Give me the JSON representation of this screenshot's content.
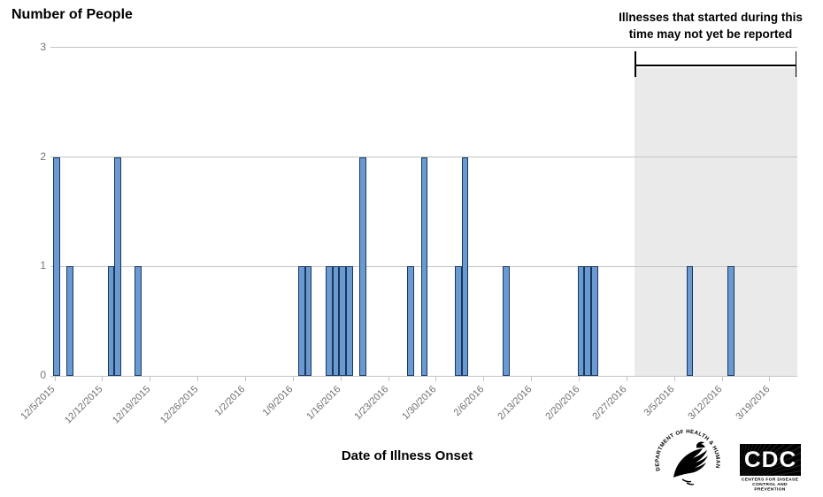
{
  "chart": {
    "title": "Number of People",
    "x_axis_title": "Date of Illness Onset",
    "annotation_line1": "Illnesses that started during this",
    "annotation_line2": "time may not yet be reported",
    "x_tick_labels": [
      "12/5/2015",
      "12/12/2015",
      "12/19/2015",
      "12/26/2015",
      "1/2/2016",
      "1/9/2016",
      "1/16/2016",
      "1/23/2016",
      "1/30/2016",
      "2/6/2016",
      "2/13/2016",
      "2/20/2016",
      "2/27/2016",
      "3/5/2016",
      "3/12/2016",
      "3/19/2016"
    ],
    "y_tick_labels": [
      "0",
      "1",
      "2",
      "3"
    ]
  },
  "chart_data": {
    "type": "bar",
    "title": "Number of People",
    "xlabel": "Date of Illness Onset",
    "ylabel": "Number of People",
    "ylim": [
      0,
      3
    ],
    "grid": true,
    "x": [
      "12/5/2015",
      "12/7/2015",
      "12/13/2015",
      "12/14/2015",
      "12/17/2015",
      "1/10/2016",
      "1/11/2016",
      "1/14/2016",
      "1/15/2016",
      "1/16/2016",
      "1/17/2016",
      "1/19/2016",
      "1/26/2016",
      "1/28/2016",
      "2/2/2016",
      "2/3/2016",
      "2/9/2016",
      "2/20/2016",
      "2/21/2016",
      "2/22/2016",
      "3/7/2016",
      "3/13/2016"
    ],
    "values": [
      2,
      1,
      1,
      2,
      1,
      1,
      1,
      1,
      1,
      1,
      1,
      2,
      1,
      2,
      1,
      2,
      1,
      1,
      1,
      1,
      1,
      1
    ],
    "shaded_region": {
      "start_date": "2/28/2016",
      "end_date": "3/23/2016",
      "label": "Illnesses that started during this time may not yet be reported"
    }
  },
  "colors": {
    "bar_fill": "#6B9AD1",
    "bar_border": "#17375E",
    "gridline": "#C4C4C4",
    "shaded_region": "#EAEAEA",
    "axis_text": "#6E6E6E",
    "annotation_text": "#000000"
  },
  "logos": {
    "hhs_seal_text": "DEPARTMENT OF HEALTH & HUMAN SERVICES • USA",
    "cdc_acronym": "CDC",
    "cdc_sub_line1": "CENTERS FOR DISEASE",
    "cdc_sub_line2": "CONTROL AND PREVENTION"
  }
}
